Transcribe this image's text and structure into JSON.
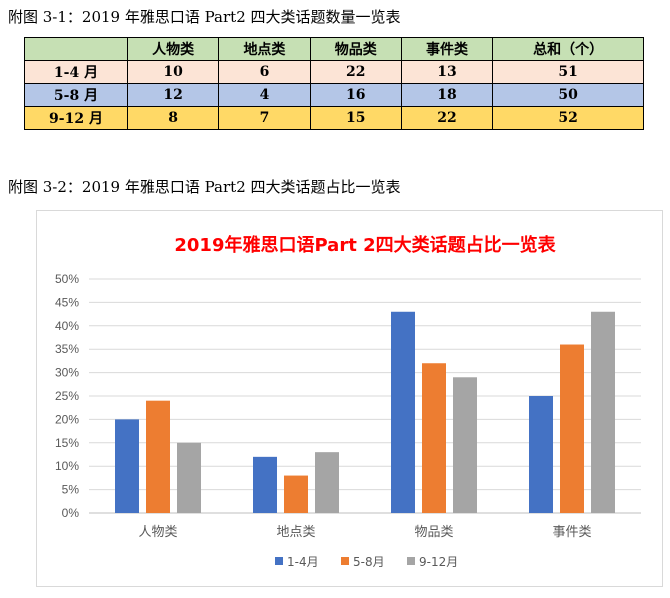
{
  "caption1": "附图 3-1：2019 年雅思口语 Part2 四大类话题数量一览表",
  "caption2": "附图 3-2：2019 年雅思口语 Part2 四大类话题占比一览表",
  "table": {
    "headers": [
      "",
      "人物类",
      "地点类",
      "物品类",
      "事件类",
      "总和（个）"
    ],
    "rows": [
      {
        "label": "1-4 月",
        "values": [
          "10",
          "6",
          "22",
          "13",
          "51"
        ]
      },
      {
        "label": "5-8 月",
        "values": [
          "12",
          "4",
          "16",
          "18",
          "50"
        ]
      },
      {
        "label": "9-12 月",
        "values": [
          "8",
          "7",
          "15",
          "22",
          "52"
        ]
      }
    ]
  },
  "chart_data": {
    "type": "bar",
    "title": "2019年雅思口语Part 2四大类话题占比一览表",
    "categories": [
      "人物类",
      "地点类",
      "物品类",
      "事件类"
    ],
    "series": [
      {
        "name": "1-4月",
        "values": [
          20,
          12,
          43,
          25
        ],
        "color": "#4472c4"
      },
      {
        "name": "5-8月",
        "values": [
          24,
          8,
          32,
          36
        ],
        "color": "#ed7d31"
      },
      {
        "name": "9-12月",
        "values": [
          15,
          13,
          29,
          43
        ],
        "color": "#a5a5a5"
      }
    ],
    "yticks": [
      "0%",
      "5%",
      "10%",
      "15%",
      "20%",
      "25%",
      "30%",
      "35%",
      "40%",
      "45%",
      "50%"
    ],
    "ylim": [
      0,
      50
    ],
    "ylabel": "",
    "xlabel": "",
    "grid": true,
    "legend_position": "bottom"
  }
}
